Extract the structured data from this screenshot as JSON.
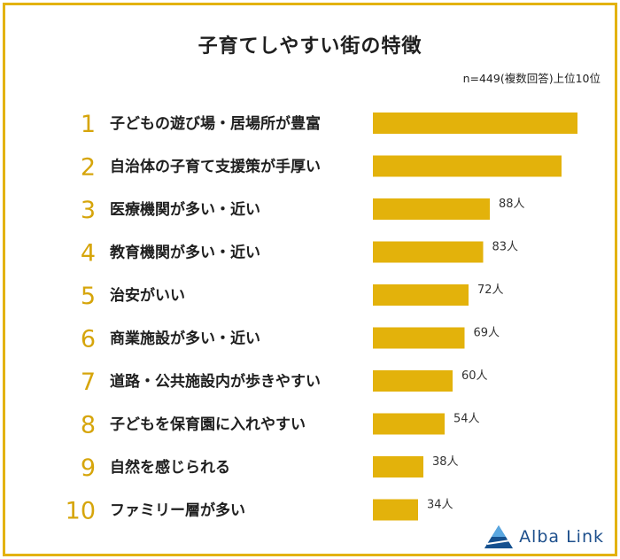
{
  "page": {
    "title": "子育てしやすい街の特徴",
    "note": "n=449(複数回答)上位10位",
    "logo_text": "Alba Link"
  },
  "colors": {
    "bar": "#e3b20b",
    "rank": "#d6a50b",
    "border": "#e3b20b",
    "logo": "#1d4f8c"
  },
  "chart_data": {
    "type": "bar",
    "orientation": "horizontal",
    "title": "子育てしやすい街の特徴",
    "subtitle": "n=449(複数回答)上位10位",
    "xlabel": "",
    "ylabel": "",
    "xlim": [
      0,
      160
    ],
    "legend": "none",
    "grid": false,
    "ranks": [
      "1",
      "2",
      "3",
      "4",
      "5",
      "6",
      "7",
      "8",
      "9",
      "10"
    ],
    "categories": [
      "子どもの遊び場・居場所が豊富",
      "自治体の子育て支援策が手厚い",
      "医療機関が多い・近い",
      "教育機関が多い・近い",
      "治安がいい",
      "商業施設が多い・近い",
      "道路・公共施設内が歩きやすい",
      "子どもを保育園に入れやすい",
      "自然を感じられる",
      "ファミリー層が多い"
    ],
    "values": [
      154,
      142,
      88,
      83,
      72,
      69,
      60,
      54,
      38,
      34
    ],
    "data_labels": [
      "",
      "",
      "88人",
      "83人",
      "72人",
      "69人",
      "60人",
      "54人",
      "38人",
      "34人"
    ]
  }
}
